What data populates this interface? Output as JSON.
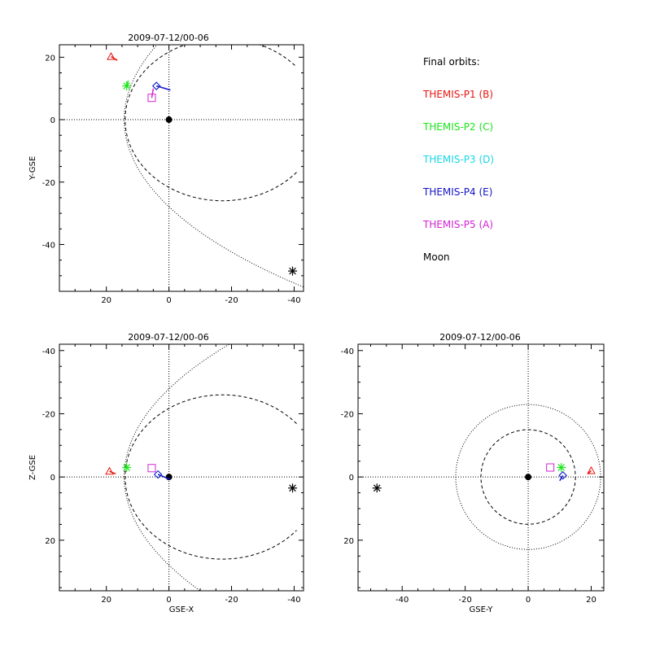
{
  "colors": {
    "P1": "#e8150f",
    "P2": "#19e619",
    "P3": "#19d7e6",
    "P4": "#1414c8",
    "P5": "#d223d2",
    "Moon": "#000000"
  },
  "legend": {
    "title": "Final orbits:",
    "entries": [
      {
        "key": "P1",
        "label": "THEMIS-P1 (B)"
      },
      {
        "key": "P2",
        "label": "THEMIS-P2 (C)"
      },
      {
        "key": "P3",
        "label": "THEMIS-P3 (D)"
      },
      {
        "key": "P4",
        "label": "THEMIS-P4 (E)"
      },
      {
        "key": "P5",
        "label": "THEMIS-P5 (A)"
      },
      {
        "key": "Moon",
        "label": "Moon"
      }
    ]
  },
  "chart_data": [
    {
      "id": "xy",
      "type": "scatter",
      "title": "2009-07-12/00-06",
      "xlabel": "",
      "ylabel": "Y-GSE",
      "xlim": [
        35,
        -43
      ],
      "ylim": [
        24,
        -55
      ],
      "xticks": [
        20,
        0,
        -20,
        -40
      ],
      "yticks": [
        20,
        0,
        -20,
        -40
      ],
      "reference": "parabola",
      "points": [
        {
          "key": "P1",
          "marker": "triangle",
          "x": 18.5,
          "y": 20.2,
          "trail": [
            [
              18.5,
              20.2
            ],
            [
              16.5,
              19.0
            ]
          ]
        },
        {
          "key": "P2",
          "marker": "asterisk",
          "x": 13.5,
          "y": 10.8,
          "trail": [
            [
              13.5,
              10.8
            ],
            [
              13.0,
              12.5
            ]
          ]
        },
        {
          "key": "P3",
          "marker": "diamond",
          "x": 4.0,
          "y": 10.8,
          "trail": []
        },
        {
          "key": "P4",
          "marker": "diamond",
          "x": 4.0,
          "y": 10.8,
          "trail": [
            [
              4.0,
              10.8
            ],
            [
              -0.5,
              9.5
            ]
          ]
        },
        {
          "key": "P5",
          "marker": "square",
          "x": 5.5,
          "y": 7.0,
          "trail": [
            [
              5.5,
              7.0
            ],
            [
              5.0,
              10.0
            ]
          ]
        },
        {
          "key": "Moon",
          "marker": "asterisk",
          "x": -39.5,
          "y": -48.5,
          "trail": []
        }
      ]
    },
    {
      "id": "xz",
      "type": "scatter",
      "title": "2009-07-12/00-06",
      "xlabel": "GSE-X",
      "ylabel": "Z-GSE",
      "xlim": [
        35,
        -43
      ],
      "ylim": [
        -42,
        36
      ],
      "xticks": [
        20,
        0,
        -20,
        -40
      ],
      "yticks": [
        20,
        0,
        -20,
        -40
      ],
      "reference": "parabola",
      "points": [
        {
          "key": "P1",
          "marker": "triangle",
          "x": 19.0,
          "y": -1.8,
          "trail": [
            [
              19.0,
              -1.8
            ],
            [
              17.0,
              -1.0
            ]
          ]
        },
        {
          "key": "P2",
          "marker": "asterisk",
          "x": 13.5,
          "y": -3.0,
          "trail": []
        },
        {
          "key": "P3",
          "marker": "diamond",
          "x": 3.5,
          "y": -0.8,
          "trail": []
        },
        {
          "key": "P4",
          "marker": "diamond",
          "x": 3.5,
          "y": -0.8,
          "trail": [
            [
              3.5,
              -0.8
            ],
            [
              -0.5,
              0.8
            ]
          ]
        },
        {
          "key": "P5",
          "marker": "square",
          "x": 5.5,
          "y": -2.8,
          "trail": []
        },
        {
          "key": "Moon",
          "marker": "asterisk",
          "x": -39.5,
          "y": 3.5,
          "trail": []
        }
      ]
    },
    {
      "id": "yz",
      "type": "scatter",
      "title": "2009-07-12/00-06",
      "xlabel": "GSE-Y",
      "ylabel": "",
      "xlim": [
        -54,
        24
      ],
      "ylim": [
        -42,
        36
      ],
      "xticks": [
        -40,
        -20,
        0,
        20
      ],
      "yticks": [
        20,
        0,
        -20,
        -40
      ],
      "reference": "circles",
      "points": [
        {
          "key": "P1",
          "marker": "triangle",
          "x": 20.0,
          "y": -2.0,
          "trail": [
            [
              20.0,
              -2.0
            ],
            [
              19.0,
              -1.0
            ]
          ]
        },
        {
          "key": "P2",
          "marker": "asterisk",
          "x": 10.5,
          "y": -3.0,
          "trail": []
        },
        {
          "key": "P3",
          "marker": "diamond",
          "x": 11.0,
          "y": -0.5,
          "trail": []
        },
        {
          "key": "P4",
          "marker": "diamond",
          "x": 11.0,
          "y": -0.5,
          "trail": [
            [
              11.0,
              -0.5
            ],
            [
              10.0,
              1.2
            ]
          ]
        },
        {
          "key": "P5",
          "marker": "square",
          "x": 7.0,
          "y": -3.0,
          "trail": []
        },
        {
          "key": "Moon",
          "marker": "asterisk",
          "x": -48.0,
          "y": 3.5,
          "trail": []
        }
      ]
    }
  ]
}
